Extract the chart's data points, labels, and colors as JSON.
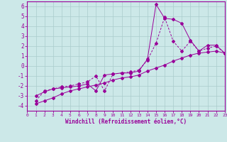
{
  "xlabel": "Windchill (Refroidissement éolien,°C)",
  "bg_color": "#cce8e8",
  "line_color": "#990099",
  "grid_color": "#aacccc",
  "xlim": [
    0,
    23
  ],
  "ylim": [
    -4.5,
    6.5
  ],
  "yticks": [
    -4,
    -3,
    -2,
    -1,
    0,
    1,
    2,
    3,
    4,
    5,
    6
  ],
  "xticks": [
    0,
    1,
    2,
    3,
    4,
    5,
    6,
    7,
    8,
    9,
    10,
    11,
    12,
    13,
    14,
    15,
    16,
    17,
    18,
    19,
    20,
    21,
    22,
    23
  ],
  "line1_x": [
    1,
    2,
    3,
    4,
    5,
    6,
    7,
    8,
    9,
    10,
    11,
    12,
    13,
    14,
    15,
    16,
    17,
    18,
    19,
    20,
    21,
    22,
    23
  ],
  "line1_y": [
    -3.0,
    -2.6,
    -2.3,
    -2.2,
    -2.1,
    -2.0,
    -1.8,
    -2.5,
    -0.9,
    -0.8,
    -0.7,
    -0.7,
    -0.5,
    0.7,
    6.2,
    4.8,
    4.7,
    4.3,
    2.6,
    1.5,
    2.1,
    2.1,
    1.3
  ],
  "line2_x": [
    1,
    2,
    3,
    4,
    5,
    6,
    7,
    8,
    9,
    10,
    11,
    12,
    13,
    14,
    15,
    16,
    17,
    18,
    19,
    20,
    21,
    22,
    23
  ],
  "line2_y": [
    -3.5,
    -2.5,
    -2.3,
    -2.1,
    -2.0,
    -1.8,
    -1.6,
    -1.0,
    -2.5,
    -0.8,
    -0.7,
    -0.6,
    -0.4,
    0.6,
    2.3,
    4.9,
    2.5,
    1.5,
    2.5,
    1.5,
    1.8,
    2.0,
    1.3
  ],
  "line3_x": [
    1,
    2,
    3,
    4,
    5,
    6,
    7,
    8,
    9,
    10,
    11,
    12,
    13,
    14,
    15,
    16,
    17,
    18,
    19,
    20,
    21,
    22,
    23
  ],
  "line3_y": [
    -3.8,
    -3.5,
    -3.2,
    -2.8,
    -2.5,
    -2.3,
    -2.1,
    -1.9,
    -1.7,
    -1.4,
    -1.2,
    -1.1,
    -0.9,
    -0.5,
    -0.2,
    0.1,
    0.5,
    0.8,
    1.1,
    1.3,
    1.4,
    1.5,
    1.3
  ]
}
